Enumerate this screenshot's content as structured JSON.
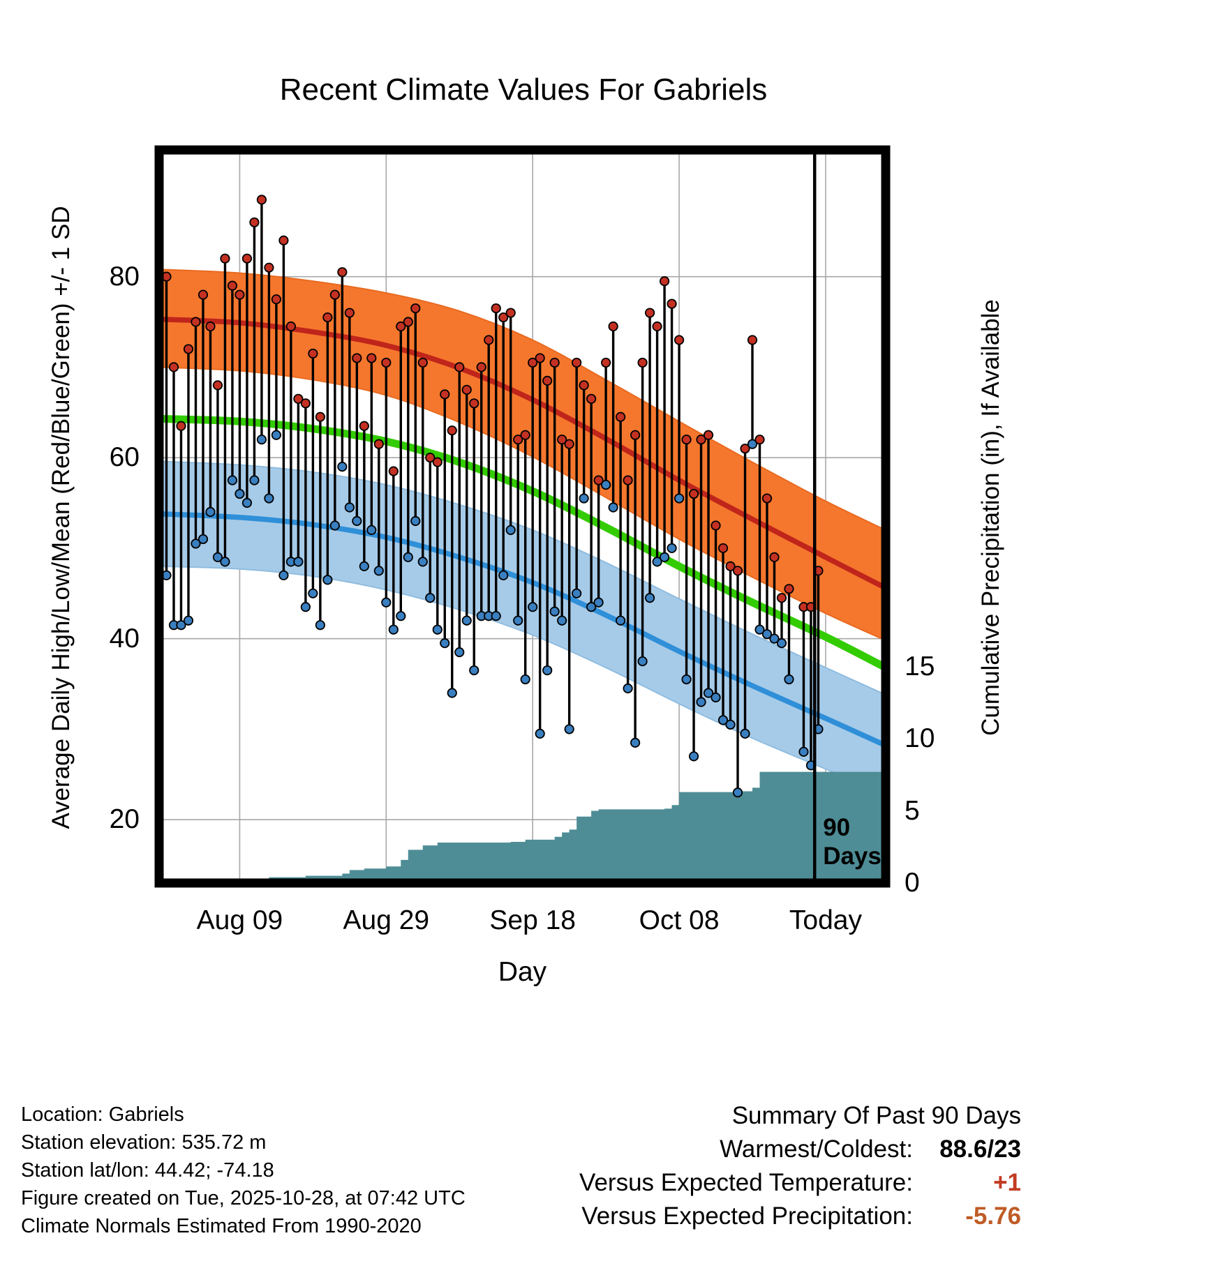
{
  "title": "Recent Climate Values For Gabriels",
  "axes": {
    "left_label": "Average Daily High/Low/Mean (Red/Blue/Green) +/- 1 SD",
    "right_label": "Cumulative Precipitation (in), If Available",
    "x_label": "Day"
  },
  "footer": {
    "lines": [
      "Location: Gabriels",
      "Station elevation: 535.72 m",
      "Station lat/lon: 44.42; -74.18",
      "Figure created on Tue, 2025-10-28, at 07:42 UTC",
      "Climate Normals Estimated From 1990-2020"
    ]
  },
  "summary": {
    "title": "Summary Of Past 90 Days",
    "rows": [
      {
        "label": "Warmest/Coldest:",
        "value": "88.6/23",
        "color": "#000000"
      },
      {
        "label": "Versus Expected Temperature:",
        "value": "+1",
        "color": "#c23b22"
      },
      {
        "label": "Versus Expected Precipitation:",
        "value": "-5.76",
        "color": "#bf5b26"
      }
    ]
  },
  "colors": {
    "high_band": "#f5772d",
    "high_band_edge": "#e86a20",
    "high_line": "#c0251b",
    "mean_line": "#33cc00",
    "low_band": "#a6cbe8",
    "low_band_edge": "#8fbcdf",
    "low_line": "#2f8fd8",
    "high_dot": "#c43122",
    "low_dot": "#3a7fc0",
    "stem": "#000000",
    "precip_fill": "#4f8d96",
    "grid": "#a8a8a8",
    "border": "#000000"
  },
  "chart_data": {
    "type": "line",
    "title": "Recent Climate Values For Gabriels",
    "xlabel": "Day",
    "ylabel_left": "Average Daily High/Low/Mean (Red/Blue/Green) +/- 1 SD",
    "ylabel_right": "Cumulative Precipitation (in), If Available",
    "layers": [
      "normal daily high band +/- 1 SD (orange fill)",
      "normal daily high mean (dark red line)",
      "normal daily mean (green line)",
      "normal daily low band +/- 1 SD (light blue fill)",
      "normal daily low mean (blue line)",
      "observed daily high/low stems (black line, red high dot, blue low dot)",
      "cumulative precipitation steps (teal fill, right axis, inches)"
    ],
    "grid": true,
    "legend": false,
    "x_unit": "day index (0 = ~Jul 30, 90 = Today Oct 28)",
    "xlim_days": [
      -1,
      98.2
    ],
    "ylim_temp": [
      13,
      94
    ],
    "y_ticks_temp": [
      20,
      40,
      60,
      80
    ],
    "y_ticks_precip": [
      0,
      5,
      10,
      15
    ],
    "x_ticks": [
      {
        "day": 10,
        "label": "Aug 09"
      },
      {
        "day": 30,
        "label": "Aug 29"
      },
      {
        "day": 50,
        "label": "Sep 18"
      },
      {
        "day": 70,
        "label": "Oct 08"
      },
      {
        "day": 90,
        "label": "Today"
      }
    ],
    "marker_90_days": {
      "day": 88.5,
      "label": "90\nDays"
    },
    "normals_x": [
      -1,
      10,
      20,
      30,
      40,
      50,
      60,
      70,
      80,
      90,
      98.2
    ],
    "normals": {
      "high_upper": [
        80.8,
        80.4,
        79.5,
        78.2,
        76.2,
        73.0,
        68.6,
        64.0,
        59.5,
        55.2,
        52.0
      ],
      "high_mean": [
        75.3,
        74.9,
        73.9,
        72.4,
        69.9,
        66.4,
        62.1,
        57.5,
        53.2,
        49.0,
        45.6
      ],
      "high_lower": [
        70.0,
        69.6,
        68.6,
        66.9,
        63.9,
        60.1,
        55.6,
        51.0,
        46.8,
        42.8,
        39.8
      ],
      "mean": [
        64.3,
        64.0,
        63.2,
        61.8,
        59.5,
        56.3,
        52.3,
        48.0,
        44.0,
        40.2,
        36.8
      ],
      "low_upper": [
        59.6,
        59.2,
        58.4,
        57.0,
        54.8,
        52.0,
        48.4,
        44.4,
        40.5,
        36.8,
        33.8
      ],
      "low_mean": [
        53.8,
        53.4,
        52.6,
        51.2,
        49.0,
        46.2,
        42.6,
        38.6,
        34.8,
        31.2,
        28.2
      ],
      "low_lower": [
        48.0,
        47.7,
        46.9,
        45.4,
        43.2,
        40.4,
        36.8,
        32.8,
        29.0,
        25.6,
        22.8
      ]
    },
    "daily_obs_format": "[day, observed_high_F, observed_low_F]",
    "daily_obs": [
      [
        0,
        80,
        47
      ],
      [
        1,
        70,
        41.5
      ],
      [
        2,
        63.5,
        41.5
      ],
      [
        3,
        72,
        42
      ],
      [
        4,
        75,
        50.5
      ],
      [
        5,
        78,
        51
      ],
      [
        6,
        74.5,
        54
      ],
      [
        7,
        68,
        49
      ],
      [
        8,
        82,
        48.5
      ],
      [
        9,
        79,
        57.5
      ],
      [
        10,
        78,
        56
      ],
      [
        11,
        82,
        55
      ],
      [
        12,
        86,
        57.5
      ],
      [
        13,
        88.5,
        62
      ],
      [
        14,
        81,
        55.5
      ],
      [
        15,
        77.5,
        62.5
      ],
      [
        16,
        84,
        47
      ],
      [
        17,
        74.5,
        48.5
      ],
      [
        18,
        66.5,
        48.5
      ],
      [
        19,
        66,
        43.5
      ],
      [
        20,
        71.5,
        45
      ],
      [
        21,
        64.5,
        41.5
      ],
      [
        22,
        75.5,
        46.5
      ],
      [
        23,
        78,
        52.5
      ],
      [
        24,
        80.5,
        59
      ],
      [
        25,
        76,
        54.5
      ],
      [
        26,
        71,
        53
      ],
      [
        27,
        63.5,
        48
      ],
      [
        28,
        71,
        52
      ],
      [
        29,
        61.5,
        47.5
      ],
      [
        30,
        70.5,
        44
      ],
      [
        31,
        58.5,
        41
      ],
      [
        32,
        74.5,
        42.5
      ],
      [
        33,
        75,
        49
      ],
      [
        34,
        76.5,
        53
      ],
      [
        35,
        70.5,
        48.5
      ],
      [
        36,
        60,
        44.5
      ],
      [
        37,
        59.5,
        41
      ],
      [
        38,
        67,
        39.5
      ],
      [
        39,
        63,
        34
      ],
      [
        40,
        70,
        38.5
      ],
      [
        41,
        67.5,
        42
      ],
      [
        42,
        66,
        36.5
      ],
      [
        43,
        70,
        42.5
      ],
      [
        44,
        73,
        42.5
      ],
      [
        45,
        76.5,
        42.5
      ],
      [
        46,
        75.5,
        47
      ],
      [
        47,
        76,
        52
      ],
      [
        48,
        62,
        42
      ],
      [
        49,
        62.5,
        35.5
      ],
      [
        50,
        70.5,
        43.5
      ],
      [
        51,
        71,
        29.5
      ],
      [
        52,
        68.5,
        36.5
      ],
      [
        53,
        70.5,
        43
      ],
      [
        54,
        62,
        42
      ],
      [
        55,
        61.5,
        30
      ],
      [
        56,
        70.5,
        45
      ],
      [
        57,
        68,
        55.5
      ],
      [
        58,
        66.5,
        43.5
      ],
      [
        59,
        57.5,
        44
      ],
      [
        60,
        70.5,
        57
      ],
      [
        61,
        74.5,
        54.5
      ],
      [
        62,
        64.5,
        42
      ],
      [
        63,
        57.5,
        34.5
      ],
      [
        64,
        62.5,
        28.5
      ],
      [
        65,
        70.5,
        37.5
      ],
      [
        66,
        76,
        44.5
      ],
      [
        67,
        74.5,
        48.5
      ],
      [
        68,
        79.5,
        49
      ],
      [
        69,
        77,
        50
      ],
      [
        70,
        73,
        55.5
      ],
      [
        71,
        62,
        35.5
      ],
      [
        72,
        56,
        27
      ],
      [
        73,
        62,
        33
      ],
      [
        74,
        62.5,
        34
      ],
      [
        75,
        52.5,
        33.5
      ],
      [
        76,
        50,
        31
      ],
      [
        77,
        48,
        30.5
      ],
      [
        78,
        47.5,
        23
      ],
      [
        79,
        61,
        29.5
      ],
      [
        80,
        73,
        61.5
      ],
      [
        81,
        62,
        41
      ],
      [
        82,
        55.5,
        40.5
      ],
      [
        83,
        49,
        40
      ],
      [
        84,
        44.5,
        39.5
      ],
      [
        85,
        45.5,
        35.5
      ],
      [
        87,
        43.5,
        27.5
      ],
      [
        88,
        43.5,
        26
      ],
      [
        89,
        47.5,
        30
      ]
    ],
    "precip_steps_format": "[day, cumulative_inches]",
    "precip_steps": [
      [
        0,
        0
      ],
      [
        9,
        0.05
      ],
      [
        12,
        0.3
      ],
      [
        14,
        0.4
      ],
      [
        19,
        0.5
      ],
      [
        24,
        0.65
      ],
      [
        25,
        0.9
      ],
      [
        27,
        1.0
      ],
      [
        30,
        1.15
      ],
      [
        32,
        1.6
      ],
      [
        33,
        2.3
      ],
      [
        35,
        2.6
      ],
      [
        37,
        2.8
      ],
      [
        47,
        2.85
      ],
      [
        49,
        3.0
      ],
      [
        53,
        3.2
      ],
      [
        54,
        3.5
      ],
      [
        55,
        3.7
      ],
      [
        56,
        4.6
      ],
      [
        58,
        5.0
      ],
      [
        59,
        5.1
      ],
      [
        68,
        5.15
      ],
      [
        69,
        5.4
      ],
      [
        70,
        6.3
      ],
      [
        78,
        6.35
      ],
      [
        80,
        6.6
      ],
      [
        81,
        7.7
      ],
      [
        98.2,
        7.7
      ]
    ]
  }
}
